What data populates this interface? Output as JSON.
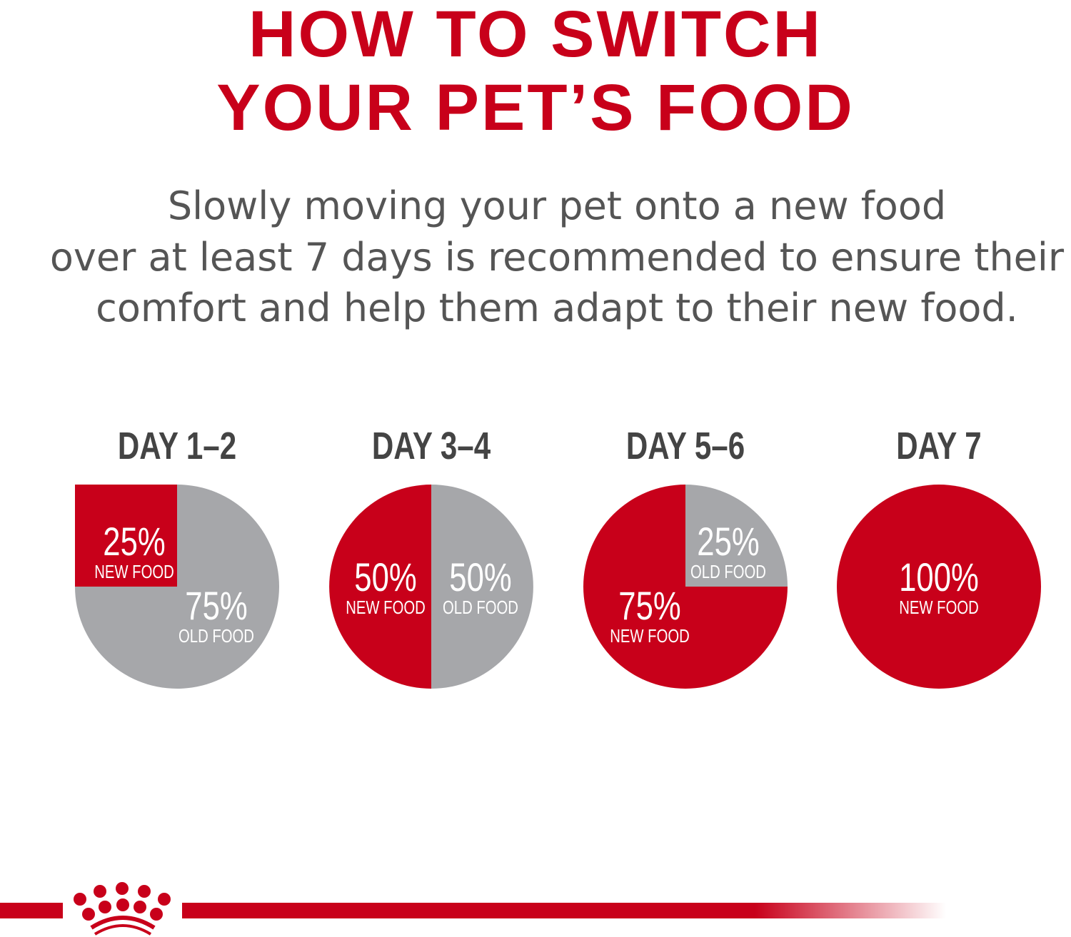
{
  "title": {
    "line1": "HOW TO SWITCH",
    "line2": "YOUR PET’S FOOD"
  },
  "subtitle": {
    "line1": "Slowly moving your pet onto a new food",
    "line2": "over at least 7 days is recommended to ensure their",
    "line3": "comfort and help them adapt to their new food."
  },
  "colors": {
    "new_food": "#c8001a",
    "old_food": "#a6a7aa",
    "title": "#c8001a",
    "text": "#555555"
  },
  "logo": {
    "icon": "royal-canin-crown-logo"
  },
  "chart_data": [
    {
      "type": "pie",
      "title": "DAY 1–2",
      "slices": [
        {
          "label": "NEW FOOD",
          "value": 25,
          "display": "25%"
        },
        {
          "label": "OLD FOOD",
          "value": 75,
          "display": "75%"
        }
      ]
    },
    {
      "type": "pie",
      "title": "DAY 3–4",
      "slices": [
        {
          "label": "NEW FOOD",
          "value": 50,
          "display": "50%"
        },
        {
          "label": "OLD FOOD",
          "value": 50,
          "display": "50%"
        }
      ]
    },
    {
      "type": "pie",
      "title": "DAY 5–6",
      "slices": [
        {
          "label": "NEW FOOD",
          "value": 75,
          "display": "75%"
        },
        {
          "label": "OLD FOOD",
          "value": 25,
          "display": "25%"
        }
      ]
    },
    {
      "type": "pie",
      "title": "DAY 7",
      "slices": [
        {
          "label": "NEW FOOD",
          "value": 100,
          "display": "100%"
        }
      ]
    }
  ]
}
